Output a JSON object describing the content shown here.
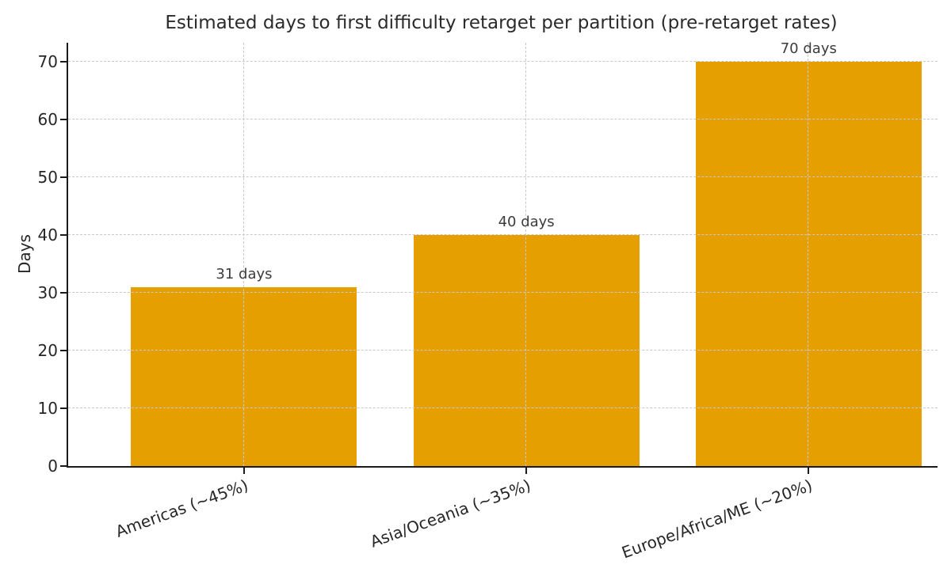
{
  "title": "Estimated days to first difficulty retarget per partition (pre-retarget rates)",
  "axes": {
    "ylabel": "Days"
  },
  "colors": {
    "bar": "#E69F00",
    "text": "#262626",
    "grid": "#c8c8c8",
    "spine": "#1a1a1a",
    "background": "#ffffff"
  },
  "chart_data": {
    "type": "bar",
    "title": "Estimated days to first difficulty retarget per partition (pre-retarget rates)",
    "categories": [
      "Americas (~45%)",
      "Asia/Oceania (~35%)",
      "Europe/Africa/ME (~20%)"
    ],
    "values": [
      31,
      40,
      70
    ],
    "bar_labels": [
      "31 days",
      "40 days",
      "70 days"
    ],
    "xlabel": "",
    "ylabel": "Days",
    "yticks": [
      0,
      10,
      20,
      30,
      40,
      50,
      60,
      70
    ],
    "ylim": [
      0,
      73.3
    ],
    "bar_color": "#E69F00",
    "bar_width_fraction": 0.8,
    "grid": true,
    "grid_style": "dashed",
    "legend_position": "none"
  }
}
